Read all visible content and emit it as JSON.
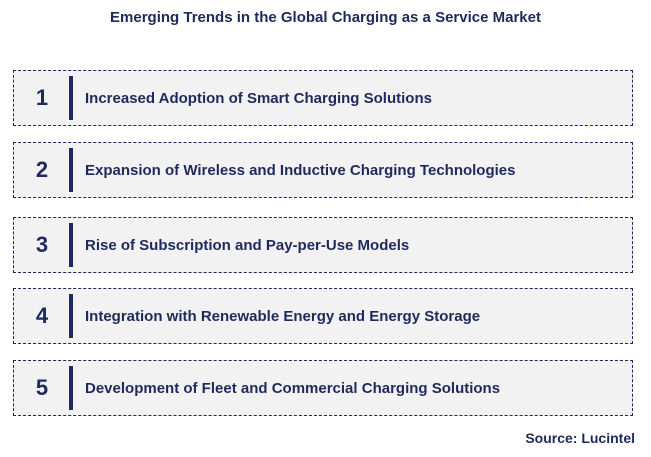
{
  "title": "Emerging Trends in the Global Charging as a Service Market",
  "trends": [
    {
      "number": "1",
      "label": "Increased Adoption of Smart Charging Solutions"
    },
    {
      "number": "2",
      "label": "Expansion of Wireless and Inductive Charging Technologies"
    },
    {
      "number": "3",
      "label": "Rise of Subscription and Pay-per-Use Models"
    },
    {
      "number": "4",
      "label": "Integration with Renewable Energy and Energy Storage"
    },
    {
      "number": "5",
      "label": "Development of Fleet and Commercial Charging Solutions"
    }
  ],
  "source": "Source: Lucintel",
  "colors": {
    "text": "#1f2a5c",
    "box_fill": "#f2f2f2",
    "border": "#1f2a5c"
  }
}
